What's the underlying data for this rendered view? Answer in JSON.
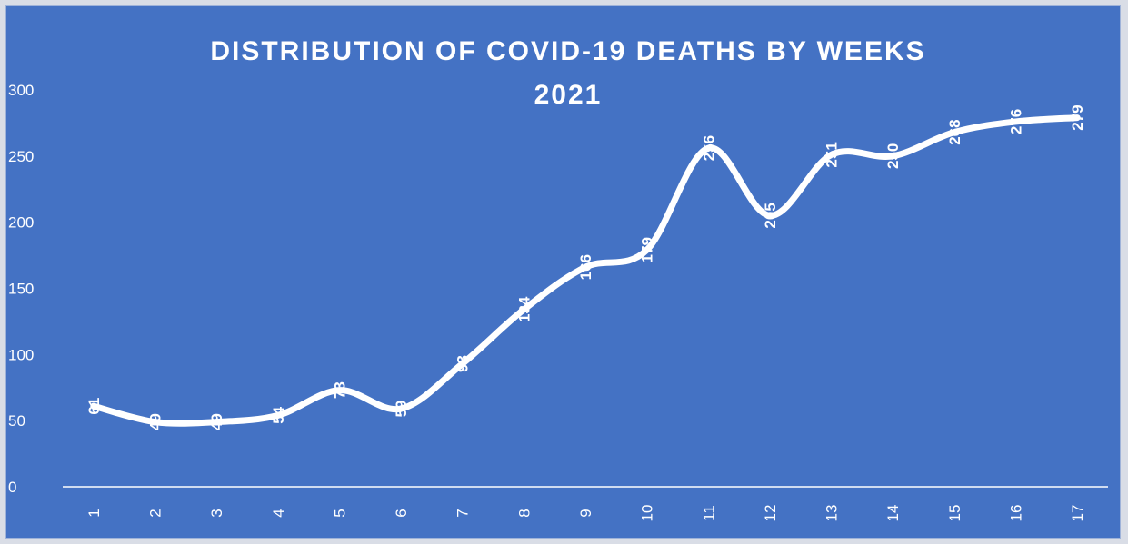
{
  "chart_data": {
    "type": "line",
    "title_line1": "DISTRIBUTION OF COVID-19 DEATHS BY WEEKS",
    "title_line2": "2021",
    "xlabel": "",
    "ylabel": "",
    "categories": [
      "1",
      "2",
      "3",
      "4",
      "5",
      "6",
      "7",
      "8",
      "9",
      "10",
      "11",
      "12",
      "13",
      "14",
      "15",
      "16",
      "17"
    ],
    "values": [
      61,
      49,
      49,
      54,
      73,
      59,
      93,
      134,
      166,
      179,
      256,
      205,
      251,
      250,
      268,
      276,
      279
    ],
    "y_ticks": [
      0,
      50,
      100,
      150,
      200,
      250,
      300
    ],
    "ylim": [
      0,
      300
    ],
    "smooth": true,
    "drop_lines": true,
    "data_labels": true,
    "grid": false,
    "legend": "none",
    "colors": {
      "background": "#4472c4",
      "line": "#ffffff",
      "text": "#ffffff"
    }
  }
}
